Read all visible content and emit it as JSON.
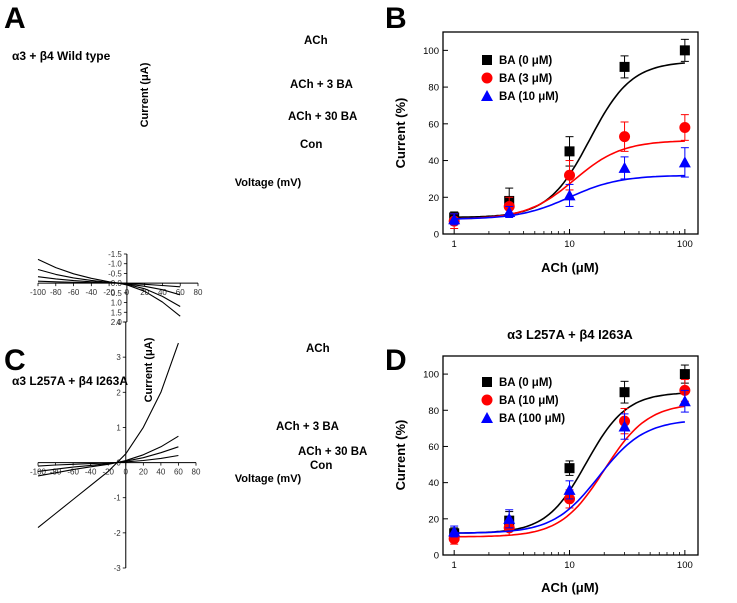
{
  "panels": {
    "A": {
      "letter": "A",
      "subtitle": "α3 + β4 Wild type"
    },
    "B": {
      "letter": "B"
    },
    "C": {
      "letter": "C",
      "subtitle": "α3 L257A + β4 I263A"
    },
    "D": {
      "letter": "D"
    }
  },
  "chart_data": [
    {
      "id": "A",
      "type": "line",
      "xlabel": "Voltage (mV)",
      "ylabel": "Current (μA)",
      "xlim": [
        -100,
        80
      ],
      "ylim": [
        -1.5,
        2.0
      ],
      "xticks": [
        -100,
        -80,
        -60,
        -40,
        -20,
        0,
        20,
        40,
        60,
        80
      ],
      "xtick_labels": [
        "-100",
        "-80",
        "-60",
        "-40",
        "-20",
        "0",
        "20",
        "40",
        "60",
        "80"
      ],
      "yticks": [
        -1.5,
        -1.0,
        -0.5,
        0.0,
        0.5,
        1.0,
        1.5,
        2.0
      ],
      "ytick_labels": [
        "-1.5",
        "-1.0",
        "-0.5",
        "0.0",
        "0.5",
        "1.0",
        "1.5",
        "2.0"
      ],
      "series": [
        {
          "name": "ACh",
          "x": [
            -100,
            -80,
            -60,
            -40,
            -20,
            -10,
            0,
            20,
            40,
            60
          ],
          "y": [
            -1.22,
            -0.8,
            -0.48,
            -0.25,
            -0.07,
            0.0,
            0.09,
            0.42,
            0.97,
            1.7
          ]
        },
        {
          "name": "ACh + 3 BA",
          "x": [
            -100,
            -80,
            -60,
            -40,
            -20,
            -10,
            0,
            20,
            40,
            60
          ],
          "y": [
            -0.7,
            -0.45,
            -0.27,
            -0.14,
            -0.04,
            0.0,
            0.06,
            0.29,
            0.68,
            1.2
          ]
        },
        {
          "name": "ACh + 30 BA",
          "x": [
            -100,
            -80,
            -60,
            -40,
            -20,
            -10,
            0,
            20,
            40,
            60
          ],
          "y": [
            -0.33,
            -0.22,
            -0.13,
            -0.07,
            -0.02,
            0.0,
            0.04,
            0.16,
            0.34,
            0.6
          ]
        },
        {
          "name": "Con",
          "x": [
            -100,
            -80,
            -60,
            -40,
            -20,
            -10,
            0,
            20,
            40,
            60
          ],
          "y": [
            -0.1,
            -0.07,
            -0.045,
            -0.025,
            -0.008,
            0.0,
            0.015,
            0.06,
            0.12,
            0.19
          ]
        }
      ]
    },
    {
      "id": "B",
      "type": "scatter",
      "title": "",
      "xscale": "log",
      "xlabel": "ACh (μM)",
      "ylabel": "Current (%)",
      "xlim": [
        0.8,
        130
      ],
      "ylim": [
        0,
        110
      ],
      "xticks": [
        1,
        10,
        100
      ],
      "xtick_labels": [
        "1",
        "10",
        "100"
      ],
      "yticks": [
        0,
        20,
        40,
        60,
        80,
        100
      ],
      "ytick_labels": [
        "0",
        "20",
        "40",
        "60",
        "80",
        "100"
      ],
      "legend_position": "top-left",
      "series": [
        {
          "name": "BA (0 μM)",
          "marker": "square",
          "color": "#000000",
          "x": [
            1,
            3,
            10,
            30,
            100
          ],
          "y": [
            9,
            18,
            45,
            91,
            100
          ],
          "err": [
            3,
            7,
            8,
            6,
            6
          ],
          "fit": [
            9,
            94,
            15,
            2.4
          ]
        },
        {
          "name": "BA (3 μM)",
          "marker": "circle",
          "color": "#ff0000",
          "x": [
            1,
            3,
            10,
            30,
            100
          ],
          "y": [
            7,
            15,
            32,
            53,
            58
          ],
          "err": [
            4,
            5,
            8,
            8,
            7
          ],
          "fit": [
            8,
            51,
            11,
            2.1
          ]
        },
        {
          "name": "BA (10 μM)",
          "marker": "triangle",
          "color": "#0000ff",
          "x": [
            1,
            3,
            10,
            30,
            100
          ],
          "y": [
            8,
            12,
            21,
            36,
            39
          ],
          "err": [
            3,
            3,
            6,
            6,
            8
          ],
          "fit": [
            8,
            32,
            10,
            2.0
          ]
        }
      ]
    },
    {
      "id": "C",
      "type": "line",
      "xlabel": "Voltage (mV)",
      "ylabel": "Current (μA)",
      "xlim": [
        -100,
        80
      ],
      "ylim": [
        -3,
        4
      ],
      "xticks": [
        -100,
        -80,
        -60,
        -40,
        -20,
        0,
        20,
        40,
        60,
        80
      ],
      "xtick_labels": [
        "-100",
        "-80",
        "-60",
        "-40",
        "-20",
        "0",
        "20",
        "40",
        "60",
        "80"
      ],
      "yticks": [
        -3,
        -2,
        -1,
        0,
        1,
        2,
        3,
        4
      ],
      "ytick_labels": [
        "-3",
        "-2",
        "-1",
        "0",
        "1",
        "2",
        "3",
        "4"
      ],
      "series": [
        {
          "name": "ACh",
          "x": [
            -100,
            -80,
            -60,
            -40,
            -20,
            -10,
            0,
            20,
            40,
            60
          ],
          "y": [
            -1.85,
            -1.45,
            -1.05,
            -0.65,
            -0.25,
            0.0,
            0.25,
            1.0,
            2.0,
            3.4
          ]
        },
        {
          "name": "ACh + 3 BA",
          "x": [
            -100,
            -80,
            -60,
            -40,
            -20,
            -10,
            0,
            20,
            40,
            60
          ],
          "y": [
            -0.38,
            -0.29,
            -0.2,
            -0.12,
            -0.05,
            0.0,
            0.06,
            0.22,
            0.45,
            0.75
          ]
        },
        {
          "name": "ACh + 30 BA",
          "x": [
            -100,
            -80,
            -60,
            -40,
            -20,
            -10,
            0,
            20,
            40,
            60
          ],
          "y": [
            -0.25,
            -0.19,
            -0.13,
            -0.08,
            -0.03,
            0.0,
            0.04,
            0.14,
            0.28,
            0.45
          ]
        },
        {
          "name": "Con",
          "x": [
            -100,
            -80,
            -60,
            -40,
            -20,
            -10,
            0,
            20,
            40,
            60
          ],
          "y": [
            -0.1,
            -0.07,
            -0.05,
            -0.03,
            -0.01,
            0.0,
            0.02,
            0.06,
            0.12,
            0.2
          ]
        }
      ]
    },
    {
      "id": "D",
      "type": "scatter",
      "title": "α3 L257A + β4 I263A",
      "xscale": "log",
      "xlabel": "ACh (μM)",
      "ylabel": "Current (%)",
      "xlim": [
        0.8,
        130
      ],
      "ylim": [
        0,
        110
      ],
      "xticks": [
        1,
        10,
        100
      ],
      "xtick_labels": [
        "1",
        "10",
        "100"
      ],
      "yticks": [
        0,
        20,
        40,
        60,
        80,
        100
      ],
      "ytick_labels": [
        "0",
        "20",
        "40",
        "60",
        "80",
        "100"
      ],
      "legend_position": "top-left",
      "series": [
        {
          "name": "BA (0 μM)",
          "marker": "square",
          "color": "#000000",
          "x": [
            1,
            3,
            10,
            30,
            100
          ],
          "y": [
            12,
            19,
            48,
            90,
            100
          ],
          "err": [
            3,
            5,
            4,
            6,
            5
          ],
          "fit": [
            12,
            90,
            14,
            2.5
          ]
        },
        {
          "name": "BA (10 μM)",
          "marker": "circle",
          "color": "#ff0000",
          "x": [
            1,
            3,
            10,
            30,
            100
          ],
          "y": [
            9,
            15,
            31,
            74,
            91
          ],
          "err": [
            3,
            4,
            5,
            7,
            6
          ],
          "fit": [
            10,
            84,
            20,
            2.3
          ]
        },
        {
          "name": "BA (100 μM)",
          "marker": "triangle",
          "color": "#0000ff",
          "x": [
            1,
            3,
            10,
            30,
            100
          ],
          "y": [
            13,
            20,
            36,
            71,
            85
          ],
          "err": [
            3,
            5,
            5,
            7,
            6
          ],
          "fit": [
            12,
            75,
            18,
            2.2
          ]
        }
      ]
    }
  ]
}
